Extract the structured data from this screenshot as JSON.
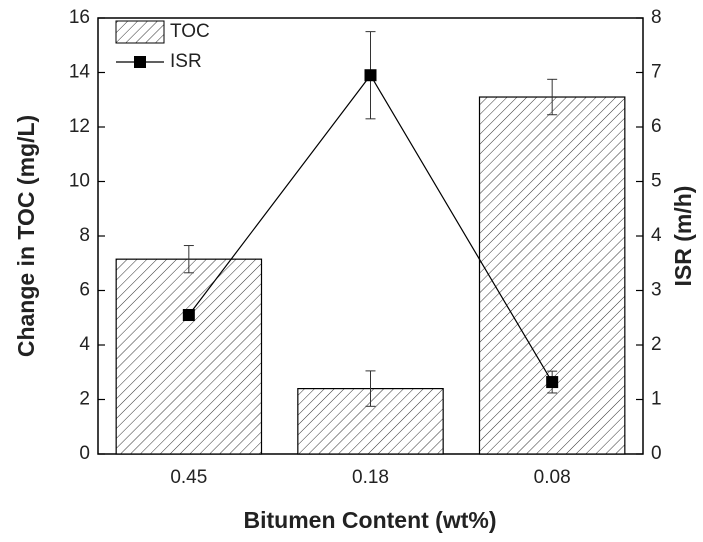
{
  "chart_data": {
    "type": "bar",
    "x_label": "Bitumen Content (wt%)",
    "y_label": "Change in TOC (mg/L)",
    "y2_label": "ISR (m/h)",
    "categories": [
      "0.45",
      "0.18",
      "0.08"
    ],
    "series": [
      {
        "name": "TOC",
        "type": "bar",
        "color": "#000000",
        "values": [
          7.15,
          2.4,
          13.1
        ],
        "errors": [
          0.5,
          0.65,
          0.65
        ]
      },
      {
        "name": "ISR",
        "type": "line",
        "axis": "y2",
        "color": "#000000",
        "values": [
          2.55,
          6.95,
          1.32
        ],
        "errors": [
          0.1,
          0.8,
          0.2
        ]
      }
    ],
    "ylim": [
      0,
      16
    ],
    "yticks": [
      0,
      2,
      4,
      6,
      8,
      10,
      12,
      14,
      16
    ],
    "y2lim": [
      0,
      8
    ],
    "y2ticks": [
      0,
      1,
      2,
      3,
      4,
      5,
      6,
      7,
      8
    ],
    "legend": "upper left"
  }
}
